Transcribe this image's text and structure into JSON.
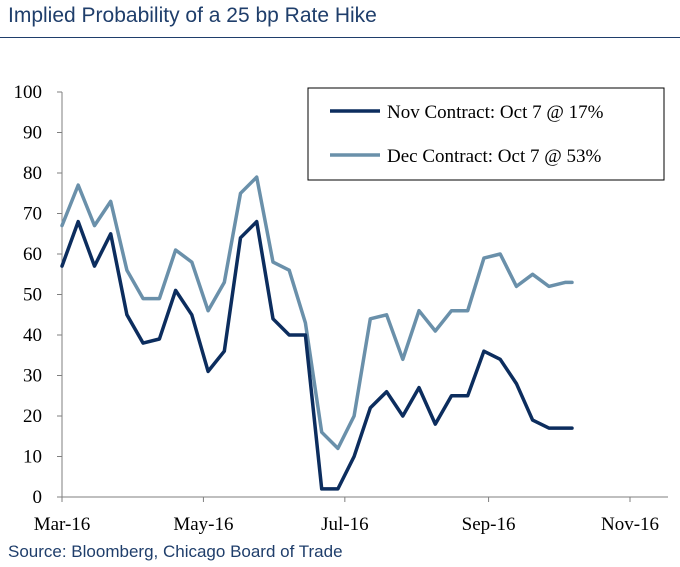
{
  "title": "Implied Probability of a 25 bp Rate Hike",
  "source": "Source: Bloomberg, Chicago Board of Trade",
  "colors": {
    "nov": "#0c2d5e",
    "dec": "#6a90aa",
    "axis": "#7f7f7f"
  },
  "chart_data": {
    "type": "line",
    "title": "Implied Probability of a 25 bp Rate Hike",
    "xlabel": "",
    "ylabel": "",
    "ylim": [
      0,
      100
    ],
    "yticks": [
      0,
      10,
      20,
      30,
      40,
      50,
      60,
      70,
      80,
      90,
      100
    ],
    "xticks": [
      "Mar-16",
      "May-16",
      "Jul-16",
      "Sep-16",
      "Nov-16"
    ],
    "xticks_dates": [
      "2016-03-01",
      "2016-05-01",
      "2016-07-01",
      "2016-09-01",
      "2016-11-01"
    ],
    "legend_position": "top-right",
    "grid": false,
    "series": [
      {
        "name": "Nov Contract: Oct 7 @ 17%",
        "color": "#0c2d5e",
        "x": [
          "2016-03-01",
          "2016-03-08",
          "2016-03-15",
          "2016-03-22",
          "2016-03-29",
          "2016-04-05",
          "2016-04-12",
          "2016-04-19",
          "2016-04-26",
          "2016-05-03",
          "2016-05-10",
          "2016-05-17",
          "2016-05-24",
          "2016-05-31",
          "2016-06-07",
          "2016-06-14",
          "2016-06-21",
          "2016-06-28",
          "2016-07-05",
          "2016-07-12",
          "2016-07-19",
          "2016-07-26",
          "2016-08-02",
          "2016-08-09",
          "2016-08-16",
          "2016-08-23",
          "2016-08-30",
          "2016-09-06",
          "2016-09-13",
          "2016-09-20",
          "2016-09-27",
          "2016-10-04",
          "2016-10-07"
        ],
        "y": [
          57,
          68,
          57,
          65,
          45,
          38,
          39,
          51,
          45,
          31,
          36,
          64,
          68,
          44,
          40,
          40,
          2,
          2,
          10,
          22,
          26,
          20,
          27,
          18,
          25,
          25,
          36,
          34,
          28,
          19,
          17,
          17,
          17
        ]
      },
      {
        "name": "Dec Contract: Oct 7 @ 53%",
        "color": "#6a90aa",
        "x": [
          "2016-03-01",
          "2016-03-08",
          "2016-03-15",
          "2016-03-22",
          "2016-03-29",
          "2016-04-05",
          "2016-04-12",
          "2016-04-19",
          "2016-04-26",
          "2016-05-03",
          "2016-05-10",
          "2016-05-17",
          "2016-05-24",
          "2016-05-31",
          "2016-06-07",
          "2016-06-14",
          "2016-06-21",
          "2016-06-28",
          "2016-07-05",
          "2016-07-12",
          "2016-07-19",
          "2016-07-26",
          "2016-08-02",
          "2016-08-09",
          "2016-08-16",
          "2016-08-23",
          "2016-08-30",
          "2016-09-06",
          "2016-09-13",
          "2016-09-20",
          "2016-09-27",
          "2016-10-04",
          "2016-10-07"
        ],
        "y": [
          67,
          77,
          67,
          73,
          56,
          49,
          49,
          61,
          58,
          46,
          53,
          75,
          79,
          58,
          56,
          43,
          16,
          12,
          20,
          44,
          45,
          34,
          46,
          41,
          46,
          46,
          59,
          60,
          52,
          55,
          52,
          53,
          53
        ]
      }
    ]
  }
}
